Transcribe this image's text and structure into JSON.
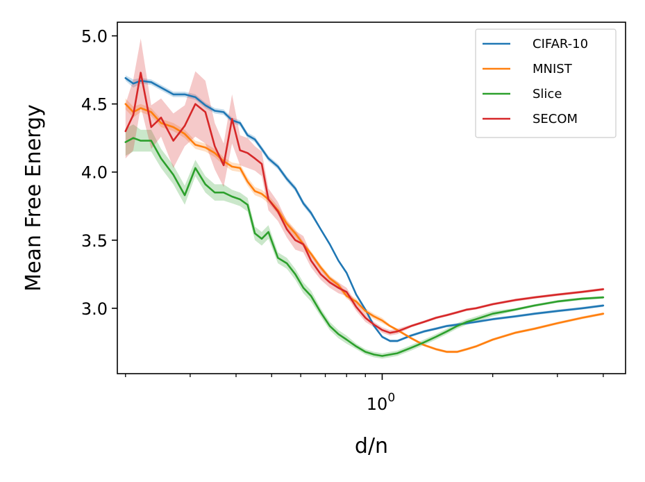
{
  "chart_data": {
    "type": "line",
    "title": "",
    "xlabel": "d/n",
    "ylabel": "Mean Free Energy",
    "xscale": "log",
    "xlim": [
      0.19,
      4.6
    ],
    "ylim": [
      2.52,
      5.1
    ],
    "x_major_ticks": [
      {
        "value": 1,
        "base": "10",
        "exp": "0"
      }
    ],
    "x_minor_ticks": [
      0.2,
      0.3,
      0.4,
      0.5,
      0.6,
      0.7,
      0.8,
      0.9,
      2,
      3,
      4
    ],
    "yticks": [
      3.0,
      3.5,
      4.0,
      4.5,
      5.0
    ],
    "ytick_labels": [
      "3.0",
      "3.5",
      "4.0",
      "4.5",
      "5.0"
    ],
    "grid": false,
    "legend_position": "top-right",
    "series": [
      {
        "name": "CIFAR-10",
        "color": "#1f77b4",
        "x": [
          0.2,
          0.21,
          0.22,
          0.235,
          0.25,
          0.27,
          0.29,
          0.31,
          0.33,
          0.35,
          0.37,
          0.39,
          0.41,
          0.43,
          0.45,
          0.47,
          0.49,
          0.52,
          0.55,
          0.58,
          0.61,
          0.64,
          0.68,
          0.72,
          0.76,
          0.8,
          0.85,
          0.9,
          0.95,
          1.0,
          1.05,
          1.1,
          1.2,
          1.3,
          1.4,
          1.5,
          1.6,
          1.8,
          2.0,
          2.3,
          2.6,
          3.0,
          3.5,
          4.0
        ],
        "y": [
          4.69,
          4.65,
          4.67,
          4.66,
          4.62,
          4.57,
          4.57,
          4.55,
          4.49,
          4.45,
          4.44,
          4.38,
          4.36,
          4.27,
          4.24,
          4.17,
          4.1,
          4.04,
          3.95,
          3.88,
          3.77,
          3.7,
          3.58,
          3.47,
          3.35,
          3.26,
          3.1,
          2.99,
          2.87,
          2.79,
          2.76,
          2.76,
          2.8,
          2.83,
          2.85,
          2.87,
          2.88,
          2.9,
          2.92,
          2.94,
          2.96,
          2.98,
          3.0,
          3.02
        ],
        "band": [
          0.02,
          0.03,
          0.02,
          0.02,
          0.02,
          0.02,
          0.02,
          0.02,
          0.02,
          0.02,
          0.02,
          0.02,
          0.02,
          0.02,
          0.02,
          0.02,
          0.02,
          0.02,
          0.02,
          0.02,
          0.02,
          0.02,
          0.01,
          0.01,
          0.01,
          0.01,
          0.01,
          0.01,
          0.01,
          0.01,
          0.01,
          0.01,
          0.01,
          0.01,
          0.01,
          0.01,
          0.01,
          0.01,
          0.01,
          0.01,
          0.01,
          0.01,
          0.01,
          0.01
        ]
      },
      {
        "name": "MNIST",
        "color": "#ff7f0e",
        "x": [
          0.2,
          0.21,
          0.22,
          0.235,
          0.25,
          0.27,
          0.29,
          0.31,
          0.33,
          0.35,
          0.37,
          0.39,
          0.41,
          0.43,
          0.45,
          0.47,
          0.49,
          0.52,
          0.55,
          0.58,
          0.61,
          0.64,
          0.68,
          0.72,
          0.76,
          0.8,
          0.85,
          0.9,
          0.95,
          1.0,
          1.05,
          1.1,
          1.2,
          1.3,
          1.4,
          1.5,
          1.6,
          1.7,
          1.8,
          2.0,
          2.3,
          2.6,
          3.0,
          3.5,
          4.0
        ],
        "y": [
          4.5,
          4.44,
          4.47,
          4.44,
          4.36,
          4.33,
          4.28,
          4.2,
          4.18,
          4.14,
          4.08,
          4.04,
          4.03,
          3.93,
          3.86,
          3.84,
          3.8,
          3.72,
          3.62,
          3.55,
          3.47,
          3.4,
          3.3,
          3.22,
          3.17,
          3.09,
          3.05,
          2.98,
          2.94,
          2.91,
          2.87,
          2.84,
          2.78,
          2.73,
          2.7,
          2.68,
          2.68,
          2.7,
          2.72,
          2.77,
          2.82,
          2.85,
          2.89,
          2.93,
          2.96
        ],
        "band": [
          0.04,
          0.04,
          0.03,
          0.03,
          0.03,
          0.03,
          0.03,
          0.03,
          0.03,
          0.03,
          0.03,
          0.03,
          0.03,
          0.03,
          0.03,
          0.03,
          0.03,
          0.03,
          0.03,
          0.03,
          0.02,
          0.02,
          0.02,
          0.02,
          0.02,
          0.02,
          0.02,
          0.02,
          0.02,
          0.02,
          0.01,
          0.01,
          0.01,
          0.01,
          0.01,
          0.01,
          0.01,
          0.01,
          0.01,
          0.01,
          0.01,
          0.01,
          0.01,
          0.01,
          0.01
        ]
      },
      {
        "name": "Slice",
        "color": "#2ca02c",
        "x": [
          0.2,
          0.21,
          0.22,
          0.235,
          0.25,
          0.27,
          0.29,
          0.31,
          0.33,
          0.35,
          0.37,
          0.39,
          0.41,
          0.43,
          0.45,
          0.47,
          0.49,
          0.52,
          0.55,
          0.58,
          0.61,
          0.64,
          0.68,
          0.72,
          0.76,
          0.8,
          0.85,
          0.9,
          0.95,
          1.0,
          1.05,
          1.1,
          1.2,
          1.3,
          1.4,
          1.5,
          1.6,
          1.7,
          1.8,
          2.0,
          2.3,
          2.6,
          3.0,
          3.5,
          4.0
        ],
        "y": [
          4.22,
          4.25,
          4.23,
          4.23,
          4.1,
          3.98,
          3.83,
          4.03,
          3.91,
          3.85,
          3.85,
          3.82,
          3.8,
          3.76,
          3.55,
          3.51,
          3.56,
          3.37,
          3.33,
          3.25,
          3.15,
          3.09,
          2.97,
          2.87,
          2.81,
          2.77,
          2.72,
          2.68,
          2.66,
          2.65,
          2.66,
          2.67,
          2.71,
          2.75,
          2.79,
          2.83,
          2.87,
          2.9,
          2.92,
          2.96,
          2.99,
          3.02,
          3.05,
          3.07,
          3.08
        ],
        "band": [
          0.1,
          0.1,
          0.08,
          0.08,
          0.07,
          0.07,
          0.07,
          0.06,
          0.06,
          0.06,
          0.06,
          0.05,
          0.05,
          0.05,
          0.05,
          0.05,
          0.05,
          0.04,
          0.04,
          0.04,
          0.04,
          0.04,
          0.03,
          0.03,
          0.03,
          0.03,
          0.02,
          0.02,
          0.02,
          0.02,
          0.02,
          0.02,
          0.02,
          0.02,
          0.02,
          0.02,
          0.02,
          0.02,
          0.02,
          0.02,
          0.01,
          0.01,
          0.01,
          0.01,
          0.01
        ]
      },
      {
        "name": "SECOM",
        "color": "#d62728",
        "x": [
          0.2,
          0.21,
          0.22,
          0.235,
          0.25,
          0.27,
          0.29,
          0.31,
          0.33,
          0.35,
          0.37,
          0.39,
          0.41,
          0.43,
          0.45,
          0.47,
          0.49,
          0.52,
          0.55,
          0.58,
          0.61,
          0.64,
          0.68,
          0.72,
          0.76,
          0.8,
          0.85,
          0.9,
          0.95,
          1.0,
          1.05,
          1.1,
          1.2,
          1.3,
          1.4,
          1.5,
          1.6,
          1.7,
          1.8,
          2.0,
          2.3,
          2.6,
          3.0,
          3.5,
          4.0
        ],
        "y": [
          4.3,
          4.42,
          4.73,
          4.33,
          4.4,
          4.23,
          4.34,
          4.5,
          4.44,
          4.19,
          4.05,
          4.39,
          4.16,
          4.14,
          4.1,
          4.06,
          3.8,
          3.71,
          3.58,
          3.5,
          3.47,
          3.35,
          3.25,
          3.19,
          3.15,
          3.12,
          3.01,
          2.93,
          2.88,
          2.84,
          2.82,
          2.83,
          2.87,
          2.9,
          2.93,
          2.95,
          2.97,
          2.99,
          3.0,
          3.03,
          3.06,
          3.08,
          3.1,
          3.12,
          3.14
        ],
        "band": [
          0.2,
          0.26,
          0.25,
          0.16,
          0.14,
          0.2,
          0.15,
          0.24,
          0.23,
          0.17,
          0.16,
          0.18,
          0.11,
          0.11,
          0.09,
          0.09,
          0.08,
          0.07,
          0.06,
          0.07,
          0.06,
          0.05,
          0.04,
          0.04,
          0.04,
          0.03,
          0.03,
          0.03,
          0.02,
          0.02,
          0.02,
          0.02,
          0.01,
          0.01,
          0.01,
          0.01,
          0.01,
          0.01,
          0.01,
          0.01,
          0.01,
          0.01,
          0.01,
          0.01,
          0.01
        ]
      }
    ]
  }
}
